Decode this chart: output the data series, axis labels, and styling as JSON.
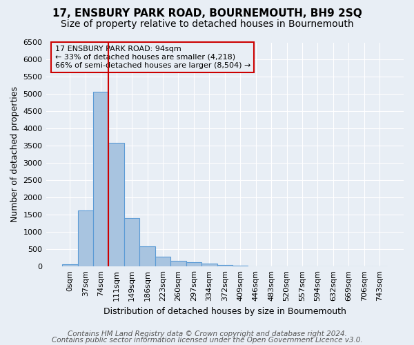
{
  "title": "17, ENSBURY PARK ROAD, BOURNEMOUTH, BH9 2SQ",
  "subtitle": "Size of property relative to detached houses in Bournemouth",
  "xlabel": "Distribution of detached houses by size in Bournemouth",
  "ylabel": "Number of detached properties",
  "footnote1": "Contains HM Land Registry data © Crown copyright and database right 2024.",
  "footnote2": "Contains public sector information licensed under the Open Government Licence v3.0.",
  "bar_values": [
    60,
    1620,
    5060,
    3580,
    1400,
    590,
    290,
    155,
    115,
    90,
    35,
    20,
    10,
    5,
    3,
    2,
    1,
    1,
    1,
    0,
    0
  ],
  "bar_labels": [
    "0sqm",
    "37sqm",
    "74sqm",
    "111sqm",
    "149sqm",
    "186sqm",
    "223sqm",
    "260sqm",
    "297sqm",
    "334sqm",
    "372sqm",
    "409sqm",
    "446sqm",
    "483sqm",
    "520sqm",
    "557sqm",
    "594sqm",
    "632sqm",
    "669sqm",
    "706sqm",
    "743sqm"
  ],
  "bar_color": "#a8c4e0",
  "bar_edgecolor": "#5b9bd5",
  "vline_x": 2.5,
  "vline_color": "#cc0000",
  "ylim": [
    0,
    6500
  ],
  "yticks": [
    0,
    500,
    1000,
    1500,
    2000,
    2500,
    3000,
    3500,
    4000,
    4500,
    5000,
    5500,
    6000,
    6500
  ],
  "annotation_text": "17 ENSBURY PARK ROAD: 94sqm\n← 33% of detached houses are smaller (4,218)\n66% of semi-detached houses are larger (8,504) →",
  "annotation_box_color": "#cc0000",
  "background_color": "#e8eef5",
  "grid_color": "#ffffff",
  "title_fontsize": 11,
  "subtitle_fontsize": 10,
  "axis_label_fontsize": 9,
  "tick_fontsize": 8,
  "footnote_fontsize": 7.5
}
